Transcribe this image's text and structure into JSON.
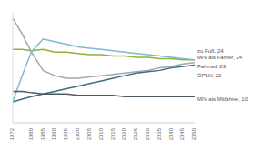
{
  "chart_data": {
    "type": "line",
    "x": [
      1972,
      1976,
      1980,
      1985,
      1990,
      1995,
      2000,
      2005,
      2010,
      2015,
      2020,
      2025,
      2030,
      2035,
      2040,
      2045,
      2050
    ],
    "xlim": [
      1972,
      2050
    ],
    "xticks": [
      1972,
      1980,
      1985,
      1990,
      1995,
      2000,
      2005,
      2010,
      2015,
      2020,
      2025,
      2030,
      2035,
      2040,
      2045,
      2050
    ],
    "ylim": [
      0,
      42
    ],
    "tick_labels": "x",
    "grid": false,
    "series": [
      {
        "name": "zu Fuß",
        "color": "#8fb339",
        "values": [
          28,
          28,
          27.5,
          28,
          27,
          27,
          26.5,
          26,
          26,
          25.5,
          25.5,
          25,
          25,
          24.5,
          24.5,
          24,
          24
        ]
      },
      {
        "name": "MIV als Fahrer",
        "color": "#7fb8cf",
        "values": [
          8,
          18,
          27,
          32,
          31,
          30,
          29,
          28.5,
          28,
          27.5,
          27,
          26.5,
          26,
          25.5,
          25,
          24.5,
          24
        ]
      },
      {
        "name": "Fahrrad",
        "color": "#a6a6a6",
        "values": [
          40,
          34,
          27,
          20,
          18,
          17,
          17,
          17.5,
          18,
          18.5,
          19,
          19.5,
          20,
          21,
          21.5,
          22.5,
          23
        ]
      },
      {
        "name": "ÖPNV",
        "color": "#3a6f86",
        "values": [
          8,
          9,
          10,
          11,
          12,
          13,
          14,
          15,
          16,
          17,
          18,
          19,
          19.5,
          20,
          21,
          21.5,
          22
        ]
      },
      {
        "name": "MIV als Mitfahrer",
        "color": "#4d5a66",
        "values": [
          12,
          12,
          11.5,
          11,
          11,
          11,
          10.5,
          10.5,
          10.5,
          10.5,
          10,
          10,
          10,
          10,
          10,
          10,
          10
        ]
      }
    ],
    "annotations": [
      "zu Fuß, 24",
      "MIV als Fahrer, 24",
      "Fahrrad, 23",
      "ÖPNV, 22",
      "MIV als Mitfahrer, 10"
    ]
  }
}
